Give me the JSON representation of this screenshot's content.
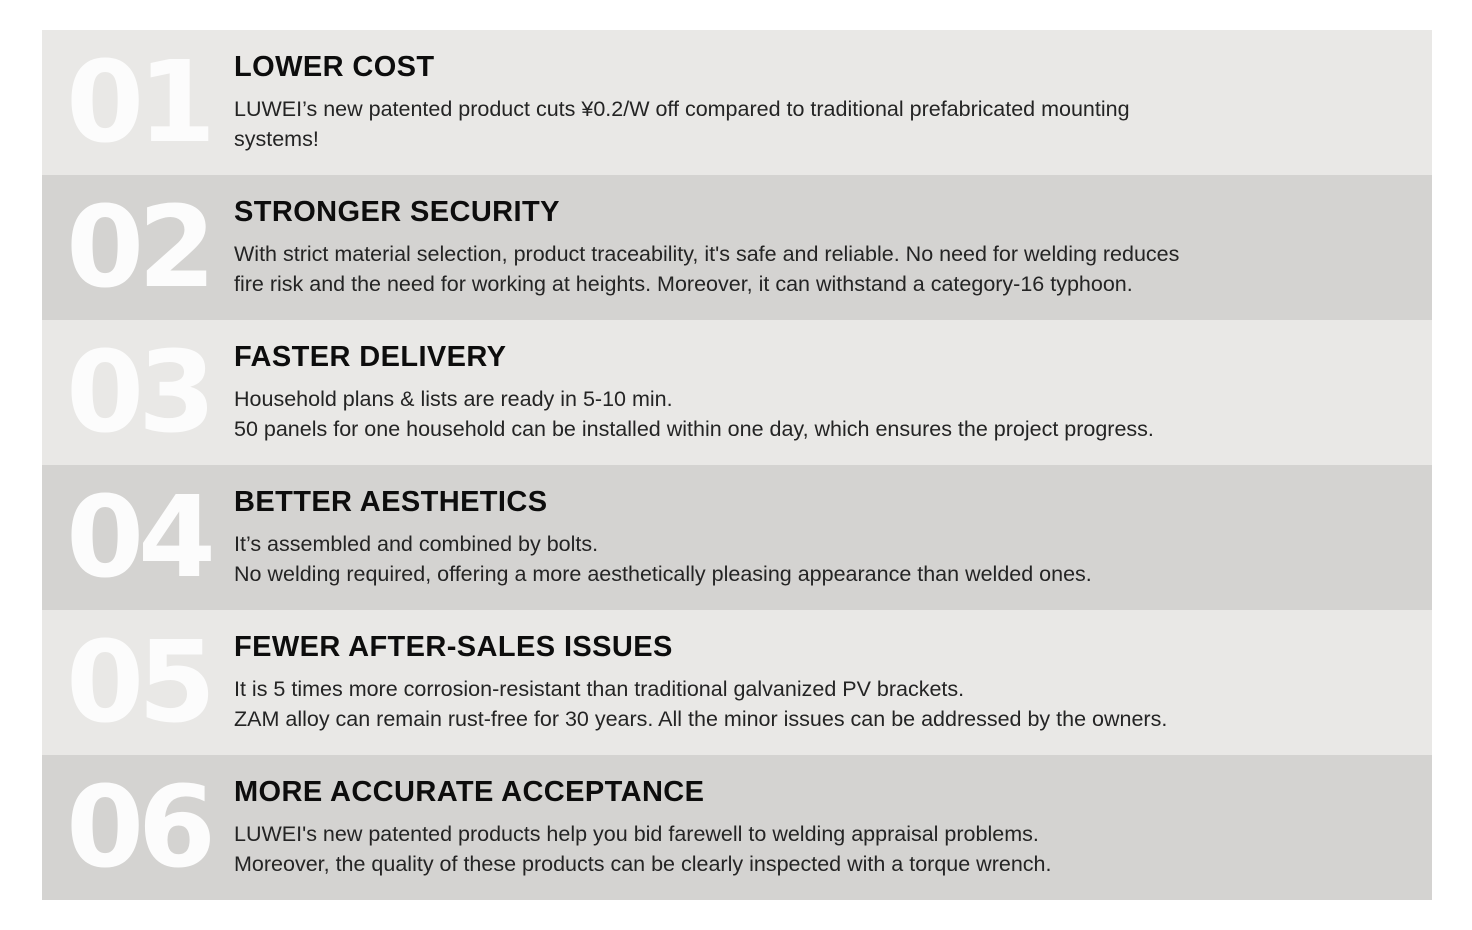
{
  "colors": {
    "row_light": "#e9e8e6",
    "row_dark": "#d4d3d1",
    "number_text": "#fcfcfc",
    "heading_text": "#0d0d0d",
    "body_text": "#242424",
    "page_background": "#ffffff"
  },
  "rows": [
    {
      "num": "01",
      "title": "LOWER COST",
      "lines": [
        "LUWEI’s new patented product cuts ¥0.2/W off compared to traditional prefabricated mounting",
        "systems!"
      ]
    },
    {
      "num": "02",
      "title": "STRONGER SECURITY",
      "lines": [
        "With strict material selection, product traceability, it's safe and reliable. No need for welding reduces",
        "fire risk and the need for working at heights. Moreover, it can withstand a category-16 typhoon."
      ]
    },
    {
      "num": "03",
      "title": "FASTER DELIVERY",
      "lines": [
        "Household plans & lists are ready in 5-10 min.",
        "50 panels for one household can be installed within one day, which ensures the project progress."
      ]
    },
    {
      "num": "04",
      "title": "BETTER AESTHETICS",
      "lines": [
        "It’s assembled and combined by bolts.",
        "No welding required, offering a more aesthetically pleasing appearance than welded ones."
      ]
    },
    {
      "num": "05",
      "title": "FEWER AFTER-SALES ISSUES",
      "lines": [
        "It is 5 times more corrosion-resistant than traditional galvanized PV brackets.",
        "ZAM alloy can remain rust-free for 30 years. All the minor issues can be addressed by the owners."
      ]
    },
    {
      "num": "06",
      "title": "MORE ACCURATE ACCEPTANCE",
      "lines": [
        "LUWEI's new patented products help you bid farewell to welding appraisal problems.",
        "Moreover, the quality of these products can be clearly inspected with a torque wrench."
      ]
    }
  ]
}
